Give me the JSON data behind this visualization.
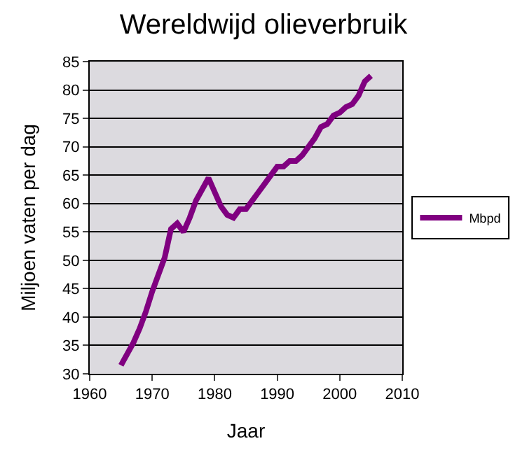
{
  "chart_data": {
    "type": "line",
    "title": "Wereldwijd olieverbruik",
    "xlabel": "Jaar",
    "ylabel": "Miljoen vaten per dag",
    "x": [
      1965,
      1966,
      1967,
      1968,
      1969,
      1970,
      1971,
      1972,
      1973,
      1974,
      1975,
      1976,
      1977,
      1978,
      1979,
      1980,
      1981,
      1982,
      1983,
      1984,
      1985,
      1986,
      1987,
      1988,
      1989,
      1990,
      1991,
      1992,
      1993,
      1994,
      1995,
      1996,
      1997,
      1998,
      1999,
      2000,
      2001,
      2002,
      2003,
      2004,
      2005
    ],
    "series": [
      {
        "name": "Mbpd",
        "color": "#800080",
        "values": [
          31.5,
          33.5,
          35.5,
          38,
          41,
          44.5,
          47.5,
          50.5,
          55.5,
          56.5,
          55,
          57.5,
          60.5,
          62.5,
          64.5,
          62,
          59.5,
          58,
          57.5,
          59,
          59,
          60.5,
          62,
          63.5,
          65,
          66.5,
          66.5,
          67.5,
          67.5,
          68.5,
          70,
          71.5,
          73.5,
          74,
          75.5,
          76,
          77,
          77.5,
          79,
          81.5,
          82.5
        ]
      }
    ],
    "xlim": [
      1960,
      2010
    ],
    "xticks": [
      1960,
      1970,
      1980,
      1990,
      2000,
      2010
    ],
    "ylim": [
      30,
      85
    ],
    "yticks": [
      30,
      35,
      40,
      45,
      50,
      55,
      60,
      65,
      70,
      75,
      80,
      85
    ],
    "grid": "y",
    "legend": "right",
    "marker": "none",
    "line_style": "solid"
  }
}
